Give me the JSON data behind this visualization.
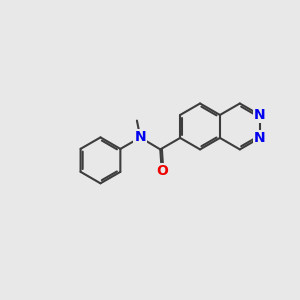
{
  "bg_color": "#e8e8e8",
  "bond_color": "#3d3d3d",
  "N_color": "#0000ee",
  "O_color": "#ee0000",
  "bond_width": 1.5,
  "font_size": 10,
  "fig_size": [
    3.0,
    3.0
  ],
  "dpi": 100,
  "xlim": [
    0,
    10
  ],
  "ylim": [
    0,
    10
  ]
}
